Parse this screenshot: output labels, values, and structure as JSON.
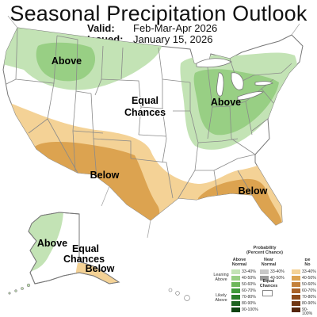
{
  "header": {
    "title": "Seasonal Precipitation Outlook",
    "valid_label": "Valid:",
    "valid_value": "Feb-Mar-Apr 2026",
    "issued_label": "Issued:",
    "issued_value": "January 15, 2026"
  },
  "map": {
    "regions": {
      "above_northwest": "Above",
      "above_great_lakes": "Above",
      "equal_chances_top": "Equal",
      "equal_chances_bottom": "Chances",
      "below_southwest": "Below",
      "below_southeast": "Below",
      "above_alaska": "Above",
      "ak_equal_top": "Equal",
      "ak_equal_bottom": "Chances",
      "below_alaska": "Below"
    },
    "colors": {
      "above_33_40": "#c3e3b5",
      "above_40_50": "#98cf84",
      "below_33_40": "#f4d296",
      "below_40_50": "#dca350",
      "land": "#ffffff",
      "border": "#8a8a8a",
      "water": "#ffffff"
    }
  },
  "legend": {
    "title_line1": "Probability",
    "title_line2": "(Percent Chance)",
    "above_head_1": "Above",
    "above_head_2": "Normal",
    "near_head_1": "Near",
    "near_head_2": "Normal",
    "below_head_1": "Be",
    "below_head_2": "No",
    "leaning_1": "Leaning",
    "leaning_2": "Above",
    "likely_1": "Likely",
    "likely_2": "Above",
    "equal_1": "Equal",
    "equal_2": "Chances",
    "above_rows": [
      {
        "range": "33-40%",
        "color": "#c3e3b5"
      },
      {
        "range": "40-50%",
        "color": "#98cf84"
      },
      {
        "range": "50-60%",
        "color": "#6cb75a"
      },
      {
        "range": "60-70%",
        "color": "#3f9a3a"
      },
      {
        "range": "70-80%",
        "color": "#2a7e2a"
      },
      {
        "range": "80-90%",
        "color": "#1d6320"
      },
      {
        "range": "90-100%",
        "color": "#0f4412"
      }
    ],
    "near_rows": [
      {
        "range": "33-40%",
        "color": "#c8c8c8"
      },
      {
        "range": "40-50%",
        "color": "#9a9a9a"
      }
    ],
    "below_rows": [
      {
        "range": "33-40%",
        "color": "#f4d296"
      },
      {
        "range": "40-50%",
        "color": "#dca350"
      },
      {
        "range": "50-60%",
        "color": "#c4803a"
      },
      {
        "range": "60-70%",
        "color": "#a86228"
      },
      {
        "range": "70-80%",
        "color": "#8c4a1a"
      },
      {
        "range": "80-90%",
        "color": "#703612"
      },
      {
        "range": "90-100%",
        "color": "#55260c"
      }
    ]
  }
}
